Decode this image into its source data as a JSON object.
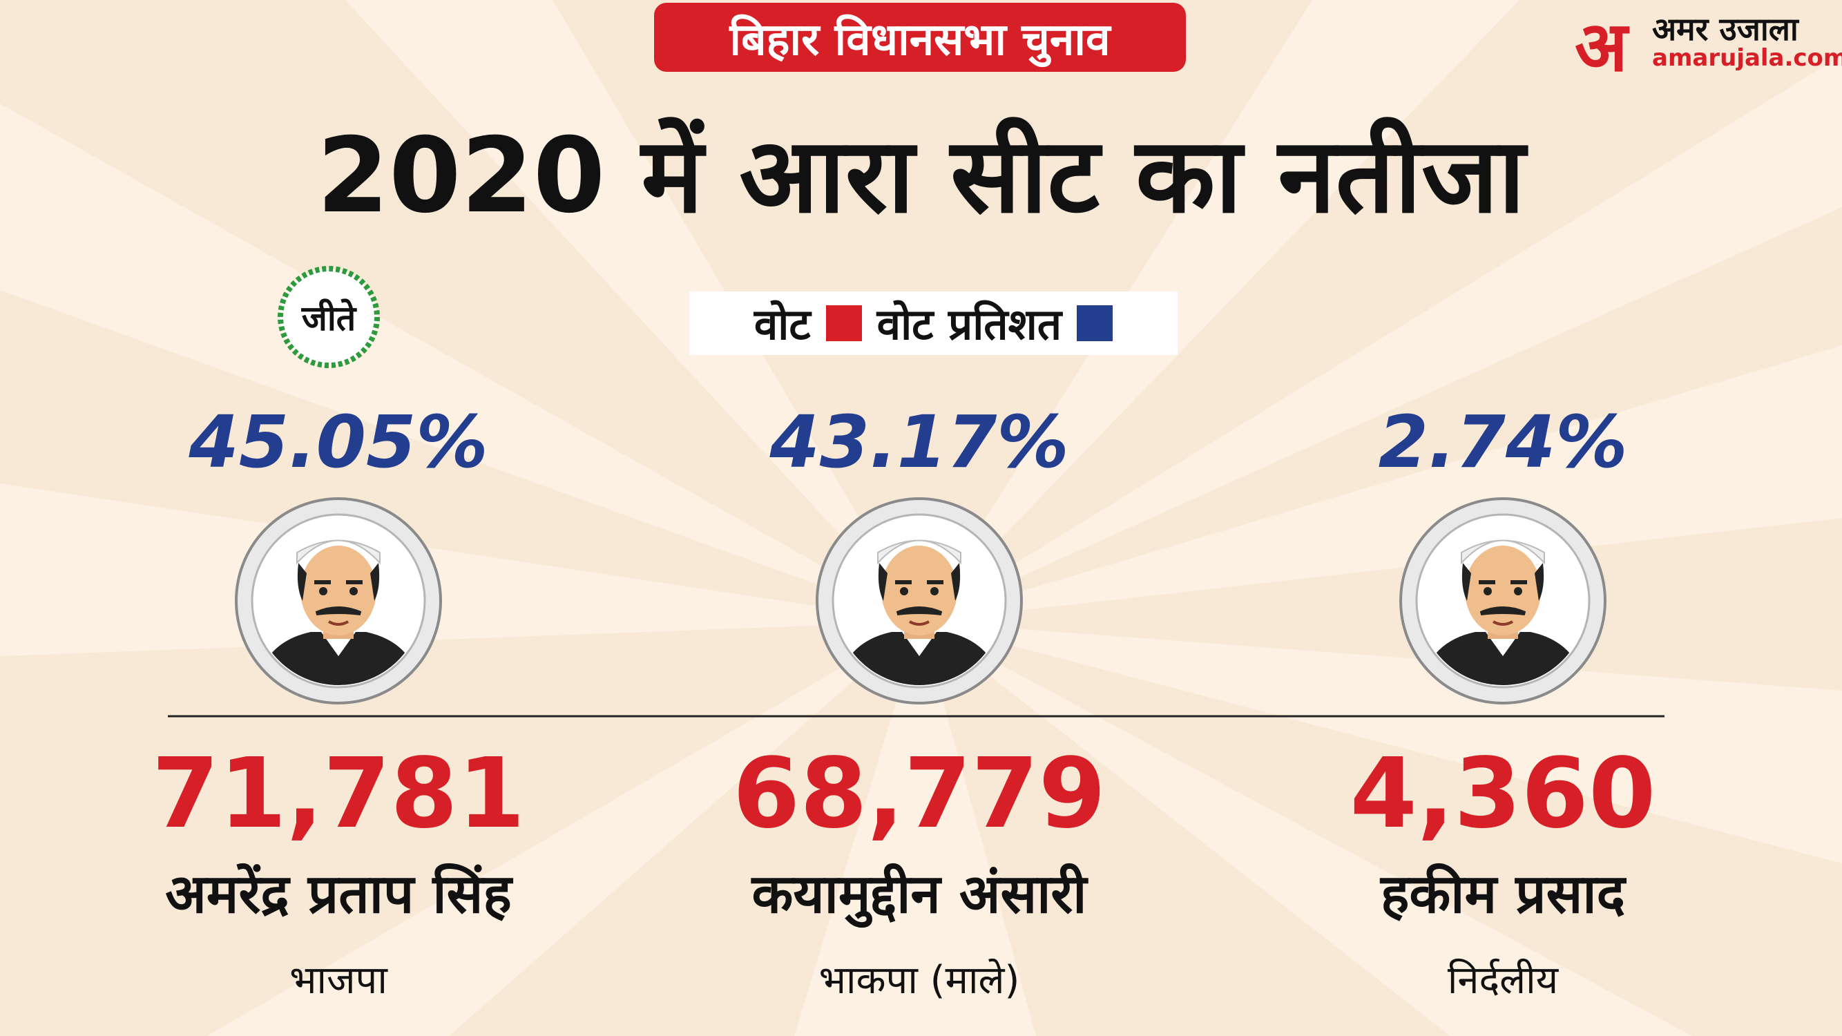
{
  "header": {
    "tag": "बिहार विधानसभा चुनाव",
    "title": "2020 में आरा सीट का नतीजा",
    "logo": {
      "mark": "अ",
      "name": "अमर उजाला",
      "site": "amarujala.com"
    }
  },
  "legend": {
    "items": [
      "वोट",
      "वोट प्रतिशत"
    ]
  },
  "winner_badge": "जीते",
  "candidates": [
    {
      "percent": "45.05%",
      "votes": "71,781",
      "name": "अमरेंद्र प्रताप सिंह",
      "party": "भाजपा"
    },
    {
      "percent": "43.17%",
      "votes": "68,779",
      "name": "कयामुद्दीन अंसारी",
      "party": "भाकपा (माले)"
    },
    {
      "percent": "2.74%",
      "votes": "4,360",
      "name": "हकीम प्रसाद",
      "party": "निर्दलीय"
    }
  ]
}
